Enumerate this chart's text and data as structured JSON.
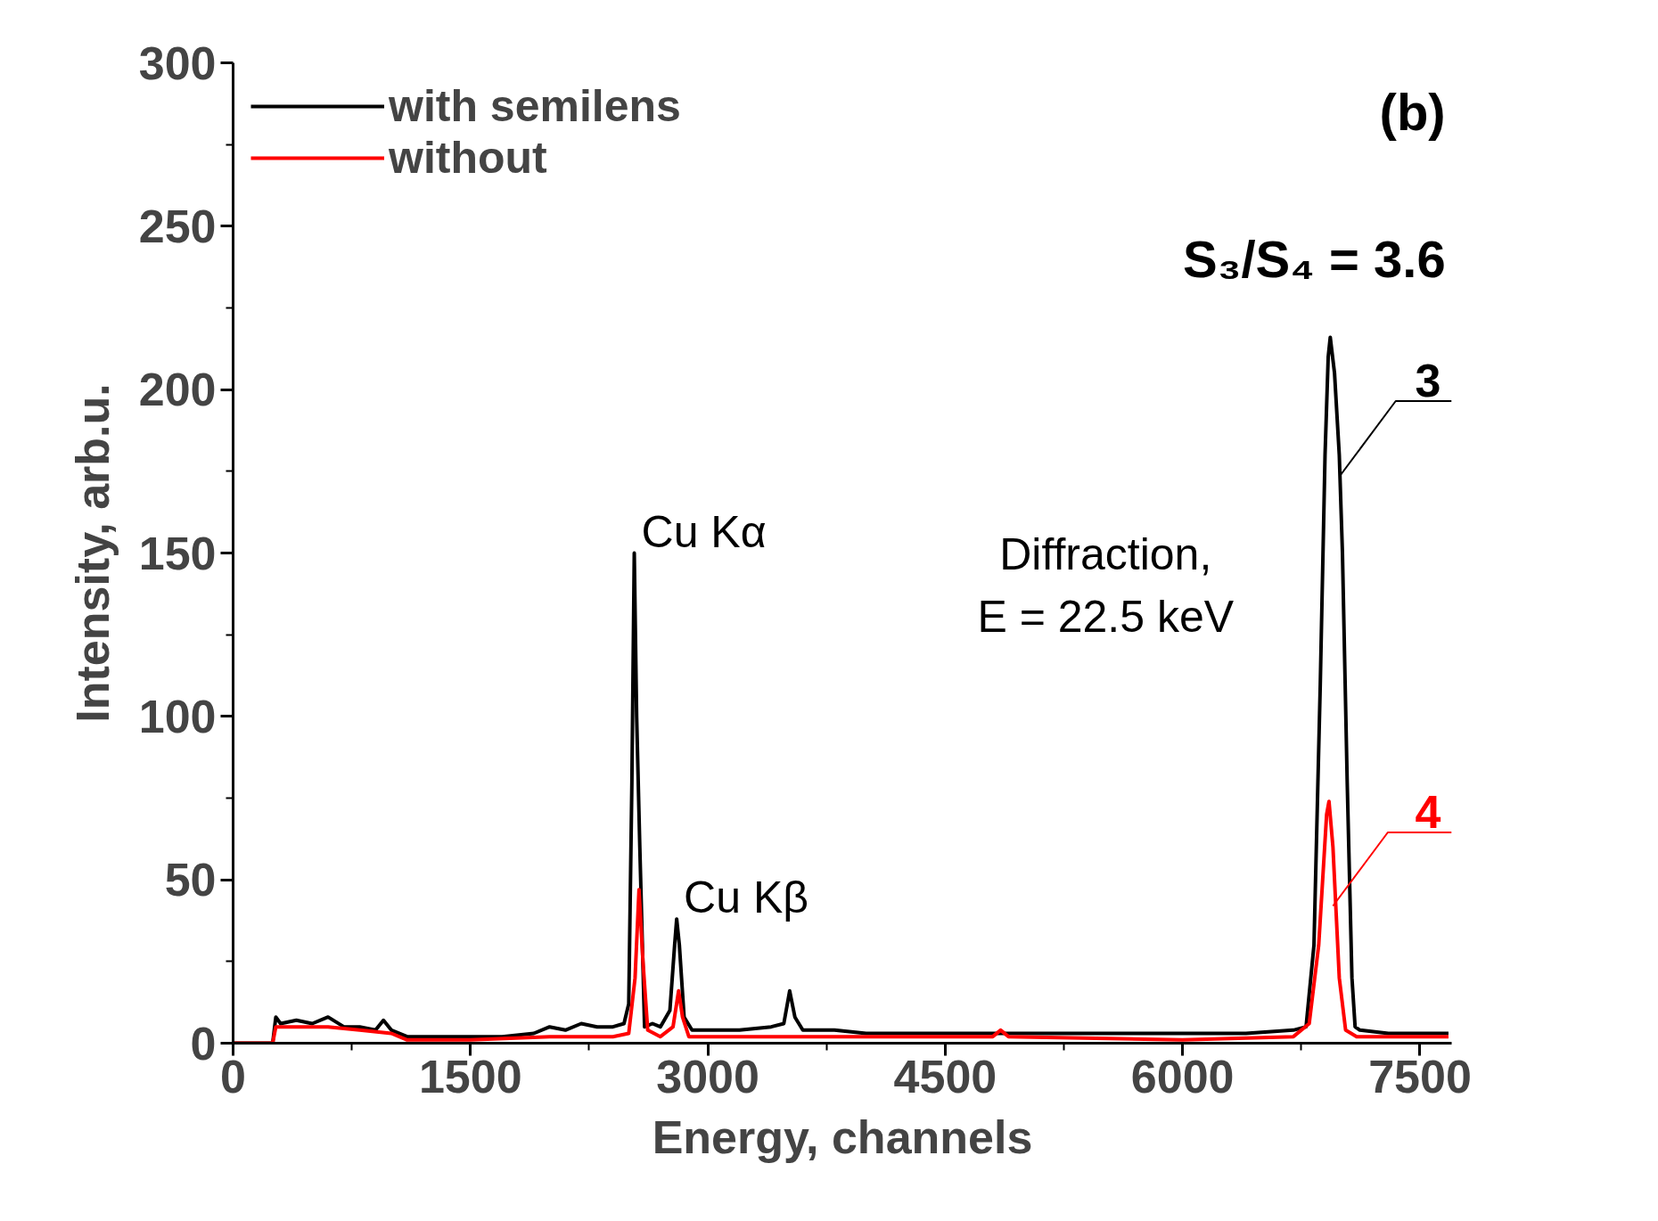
{
  "chart_data": {
    "type": "line",
    "xlabel": "Energy, channels",
    "ylabel": "Intensity, arb.u.",
    "xlim": [
      0,
      7700
    ],
    "ylim": [
      0,
      300
    ],
    "xticks": [
      0,
      {
        "value": 750,
        "label": null
      },
      1500,
      {
        "value": 2250,
        "label": null
      },
      3000,
      {
        "value": 3750,
        "label": null
      },
      4500,
      {
        "value": 5250,
        "label": null
      },
      6000,
      {
        "value": 6750,
        "label": null
      },
      7500
    ],
    "yticks": [
      0,
      {
        "value": 25,
        "label": null
      },
      50,
      {
        "value": 75,
        "label": null
      },
      100,
      {
        "value": 125,
        "label": null
      },
      150,
      {
        "value": 175,
        "label": null
      },
      200,
      {
        "value": 225,
        "label": null
      },
      250,
      {
        "value": 275,
        "label": null
      },
      300
    ],
    "grid": false,
    "legend": "top left",
    "marker": "none",
    "line_style": "solid",
    "series": [
      {
        "name": "with semilens",
        "color": "#000000",
        "x": [
          0,
          250,
          270,
          300,
          400,
          500,
          600,
          700,
          800,
          900,
          950,
          1000,
          1100,
          1300,
          1500,
          1700,
          1900,
          2000,
          2100,
          2200,
          2300,
          2400,
          2470,
          2500,
          2520,
          2535,
          2550,
          2570,
          2600,
          2650,
          2700,
          2760,
          2790,
          2803,
          2820,
          2850,
          2900,
          3000,
          3200,
          3400,
          3480,
          3517,
          3550,
          3600,
          3800,
          4000,
          4500,
          5000,
          5500,
          6000,
          6400,
          6700,
          6780,
          6830,
          6870,
          6900,
          6920,
          6933,
          6960,
          6990,
          7010,
          7040,
          7070,
          7090,
          7120,
          7300,
          7500,
          7680
        ],
        "values": [
          0,
          0,
          8,
          6,
          7,
          6,
          8,
          5,
          5,
          4,
          7,
          4,
          2,
          2,
          2,
          2,
          3,
          5,
          4,
          6,
          5,
          5,
          6,
          12,
          80,
          150,
          100,
          60,
          5,
          6,
          5,
          10,
          30,
          38,
          30,
          8,
          4,
          4,
          4,
          5,
          6,
          16,
          8,
          4,
          4,
          3,
          3,
          3,
          3,
          3,
          3,
          4,
          5,
          30,
          110,
          180,
          210,
          216,
          205,
          180,
          150,
          80,
          20,
          5,
          4,
          3,
          3,
          3
        ]
      },
      {
        "name": "without",
        "color": "#ff0000",
        "x": [
          0,
          250,
          270,
          400,
          600,
          800,
          1000,
          1100,
          1500,
          2000,
          2400,
          2500,
          2540,
          2565,
          2590,
          2620,
          2700,
          2780,
          2815,
          2840,
          2880,
          3500,
          4000,
          4800,
          4850,
          4900,
          6000,
          6700,
          6800,
          6860,
          6910,
          6925,
          6950,
          6990,
          7030,
          7100,
          7680
        ],
        "values": [
          0,
          0,
          5,
          5,
          5,
          4,
          3,
          1,
          1,
          2,
          2,
          3,
          20,
          47,
          25,
          4,
          2,
          5,
          16,
          8,
          2,
          2,
          2,
          2,
          4,
          2,
          1,
          2,
          6,
          30,
          70,
          74,
          60,
          20,
          4,
          2,
          2
        ]
      }
    ],
    "annotations": [
      {
        "text": "Cu Kα",
        "x": 2535,
        "y": 150
      },
      {
        "text": "Cu Kβ",
        "x": 2803,
        "y": 38
      },
      {
        "text": "3",
        "x": 7000,
        "y": 174
      },
      {
        "text": "4",
        "x": 6950,
        "y": 42
      },
      "Diffraction,\nE = 22.5 keV",
      "S₃/S₄ = 3.6",
      "(b)"
    ]
  }
}
